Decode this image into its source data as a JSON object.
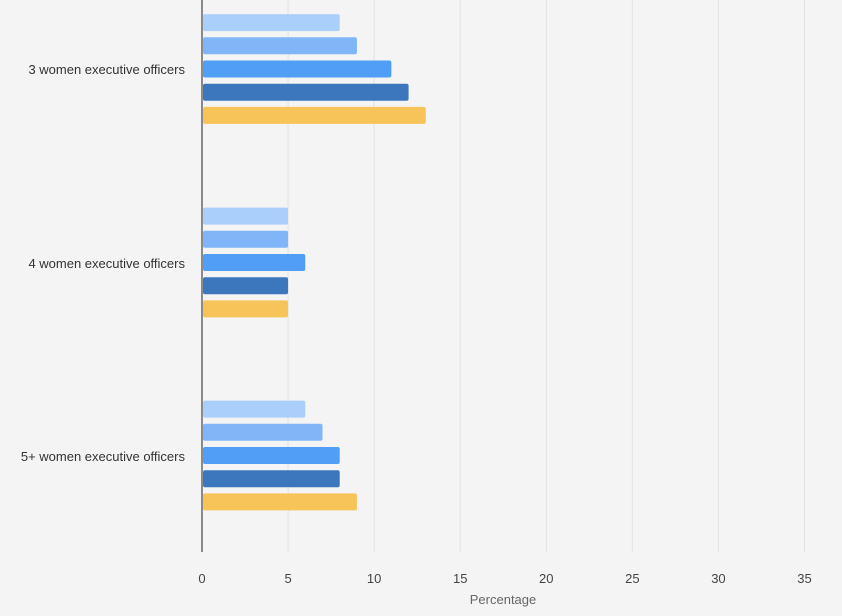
{
  "chart_data": {
    "type": "bar",
    "orientation": "horizontal",
    "title": "",
    "xlabel": "Percentage",
    "ylabel": "",
    "xlim": [
      0,
      35
    ],
    "x_ticks": [
      "0",
      "5",
      "10",
      "15",
      "20",
      "25",
      "30",
      "35"
    ],
    "grid": true,
    "legend": "none",
    "categories": [
      "3 women executive officers",
      "4 women executive officers",
      "5+ women executive officers"
    ],
    "series": [
      {
        "color": "#aacffb",
        "values": [
          8,
          5,
          6
        ]
      },
      {
        "color": "#80b6f8",
        "values": [
          9,
          5,
          7
        ]
      },
      {
        "color": "#519ef6",
        "values": [
          11,
          6,
          8
        ]
      },
      {
        "color": "#3c77bd",
        "values": [
          12,
          5,
          8
        ]
      },
      {
        "color": "#f7c45a",
        "values": [
          13,
          5,
          9
        ]
      }
    ]
  }
}
